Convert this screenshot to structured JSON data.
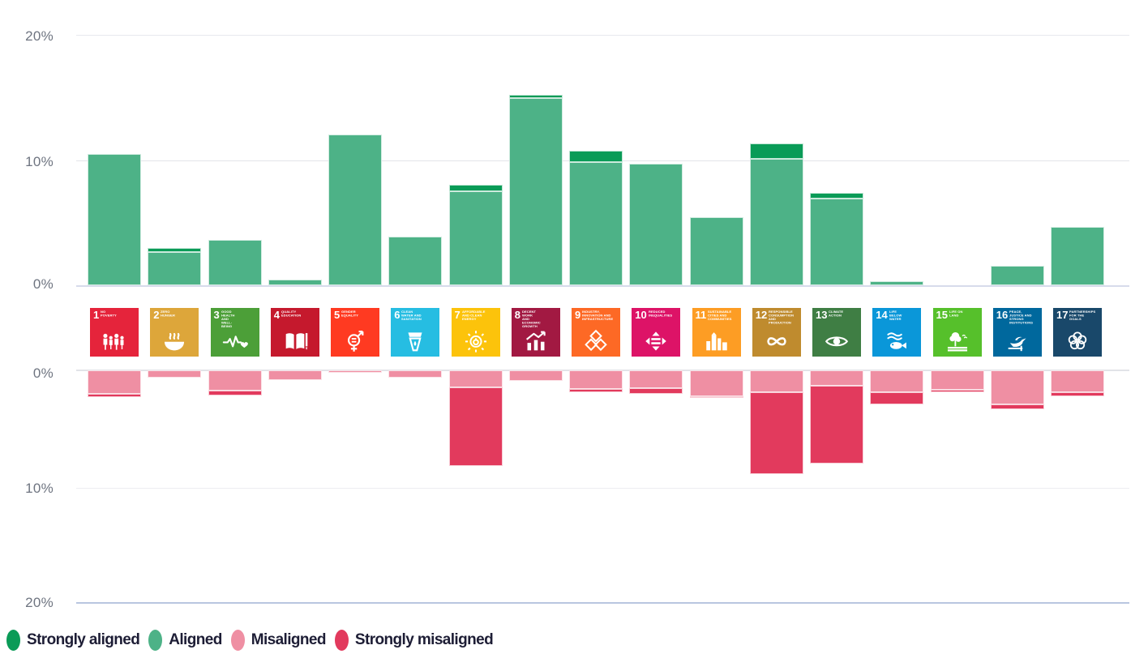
{
  "chart_data": {
    "type": "bar",
    "subtype": "diverging-stacked",
    "title": "",
    "x_axis": {
      "label": "",
      "categories_description": "UN Sustainable Development Goals 1-17"
    },
    "y_axis": {
      "unit": "%",
      "upper_ticks": [
        "20%",
        "10%",
        "0%"
      ],
      "lower_ticks": [
        "0%",
        "10%",
        "20%"
      ],
      "upper_max": 20,
      "lower_max": 20,
      "grid": true
    },
    "goals": [
      {
        "number": "1",
        "title": "NO POVERTY",
        "color": "#E5243B",
        "icon": "people-icon"
      },
      {
        "number": "2",
        "title": "ZERO HUNGER",
        "color": "#DDA63A",
        "icon": "bowl-icon"
      },
      {
        "number": "3",
        "title": "GOOD HEALTH AND WELL-BEING",
        "color": "#4C9F38",
        "icon": "heartbeat-icon"
      },
      {
        "number": "4",
        "title": "QUALITY EDUCATION",
        "color": "#C5192D",
        "icon": "book-pencil-icon"
      },
      {
        "number": "5",
        "title": "GENDER EQUALITY",
        "color": "#FF3A21",
        "icon": "gender-equality-icon"
      },
      {
        "number": "6",
        "title": "CLEAN WATER AND SANITATION",
        "color": "#26BDE2",
        "icon": "water-drop-icon"
      },
      {
        "number": "7",
        "title": "AFFORDABLE AND CLEAN ENERGY",
        "color": "#FCC30B",
        "icon": "sun-energy-icon"
      },
      {
        "number": "8",
        "title": "DECENT WORK AND ECONOMIC GROWTH",
        "color": "#A21942",
        "icon": "growth-chart-icon"
      },
      {
        "number": "9",
        "title": "INDUSTRY, INNOVATION AND INFRASTRUCTURE",
        "color": "#FD6925",
        "icon": "cubes-icon"
      },
      {
        "number": "10",
        "title": "REDUCED INEQUALITIES",
        "color": "#DD1367",
        "icon": "equality-arrows-icon"
      },
      {
        "number": "11",
        "title": "SUSTAINABLE CITIES AND COMMUNITIES",
        "color": "#FD9D24",
        "icon": "city-skyline-icon"
      },
      {
        "number": "12",
        "title": "RESPONSIBLE CONSUMPTION AND PRODUCTION",
        "color": "#BF8B2E",
        "icon": "infinity-icon"
      },
      {
        "number": "13",
        "title": "CLIMATE ACTION",
        "color": "#3F7E44",
        "icon": "eye-globe-icon"
      },
      {
        "number": "14",
        "title": "LIFE BELOW WATER",
        "color": "#0A97D9",
        "icon": "fish-waves-icon"
      },
      {
        "number": "15",
        "title": "LIFE ON LAND",
        "color": "#56C02B",
        "icon": "tree-icon"
      },
      {
        "number": "16",
        "title": "PEACE, JUSTICE AND STRONG INSTITUTIONS",
        "color": "#00689D",
        "icon": "dove-icon"
      },
      {
        "number": "17",
        "title": "PARTNERSHIPS FOR THE GOALS",
        "color": "#19486A",
        "icon": "circles-flower-icon"
      }
    ],
    "series": [
      {
        "name": "Strongly aligned",
        "color": "#0A9B57",
        "direction": "up",
        "values": [
          0,
          0.35,
          0,
          0,
          0,
          0,
          0.5,
          0.3,
          0.85,
          0,
          0,
          1.25,
          0.45,
          0,
          0,
          0,
          0
        ]
      },
      {
        "name": "Aligned",
        "color": "#4DB287",
        "direction": "up",
        "values": [
          10.5,
          2.65,
          3.6,
          0.45,
          12.0,
          3.9,
          7.5,
          14.9,
          9.85,
          9.7,
          5.45,
          10.05,
          6.9,
          0.35,
          0,
          1.55,
          4.65
        ]
      },
      {
        "name": "Misaligned",
        "color": "#EF8FA3",
        "direction": "down",
        "values": [
          2.0,
          0.6,
          1.7,
          0.85,
          0.2,
          0.6,
          1.45,
          0.9,
          1.6,
          1.55,
          2.2,
          1.85,
          1.3,
          1.9,
          1.65,
          2.9,
          1.85
        ]
      },
      {
        "name": "Strongly misaligned",
        "color": "#E23A5D",
        "direction": "down",
        "values": [
          0.3,
          0,
          0.45,
          0,
          0,
          0,
          6.75,
          0,
          0.3,
          0.45,
          0.1,
          7.05,
          6.7,
          1.0,
          0.2,
          0.4,
          0.35
        ]
      }
    ]
  },
  "axis": {
    "upper": [
      "20%",
      "10%",
      "0%"
    ],
    "lower": [
      "0%",
      "10%",
      "20%"
    ]
  },
  "legend": {
    "items": [
      {
        "label": "Strongly aligned",
        "color": "#0A9B57"
      },
      {
        "label": "Aligned",
        "color": "#4DB287"
      },
      {
        "label": "Misaligned",
        "color": "#EF8FA3"
      },
      {
        "label": "Strongly misaligned",
        "color": "#E23A5D"
      }
    ]
  }
}
